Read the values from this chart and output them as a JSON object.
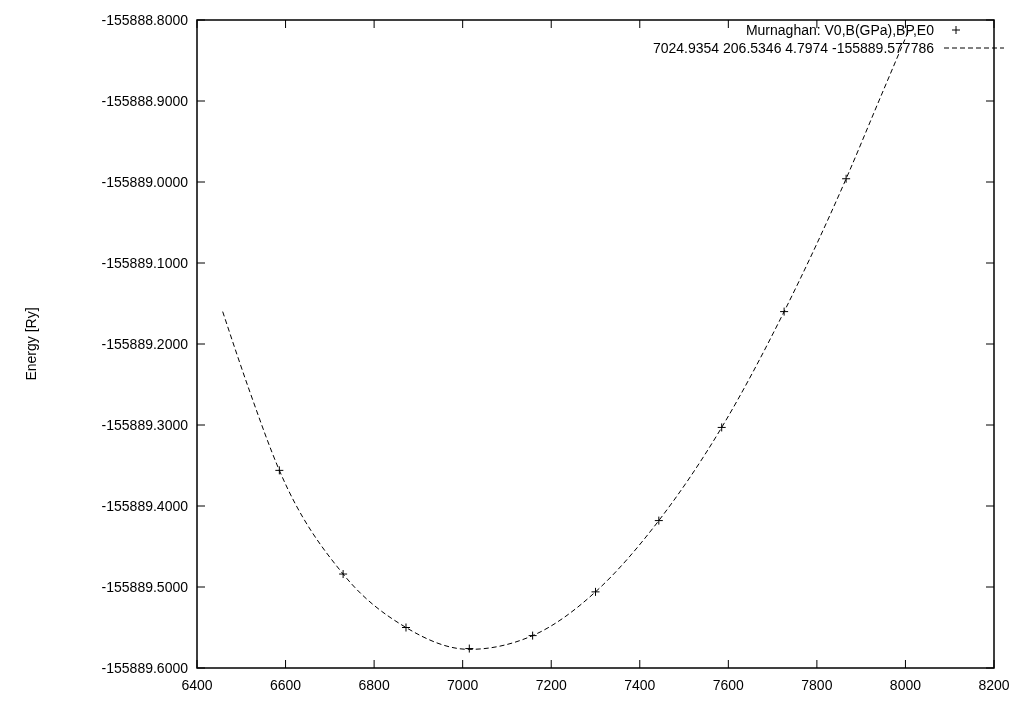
{
  "chart_data": {
    "type": "scatter",
    "ylabel": "Energy [Ry]",
    "series": [
      {
        "name": "Murnaghan: V0,B(GPa),BP,E0",
        "color": "#000000",
        "marker": "cross",
        "x": [
          6586,
          6730,
          6872,
          7015,
          7158,
          7300,
          7443,
          7585,
          7726,
          7866
        ],
        "values": [
          -155889.356,
          -155889.484,
          -155889.55,
          -155889.576,
          -155889.56,
          -155889.506,
          -155889.418,
          -155889.303,
          -155889.16,
          -155888.996
        ]
      },
      {
        "type": "line",
        "name": "7024.9354 206.5346 4.7974 -155889.577786",
        "color": "#000000",
        "marker": "none",
        "line_style": "dashed",
        "x": [
          6458,
          6520,
          6586,
          6730,
          6872,
          7015,
          7158,
          7300,
          7443,
          7585,
          7726,
          7866,
          7940,
          8008
        ],
        "values": [
          -155889.16,
          -155889.26,
          -155889.356,
          -155889.484,
          -155889.55,
          -155889.577,
          -155889.56,
          -155889.506,
          -155889.418,
          -155889.303,
          -155889.16,
          -155888.996,
          -155888.9,
          -155888.812
        ]
      }
    ],
    "xlim": [
      6400,
      8200
    ],
    "xticks": [
      6400,
      6600,
      6800,
      7000,
      7200,
      7400,
      7600,
      7800,
      8000,
      8200
    ],
    "ylim": [
      -155889.6,
      -155888.8
    ],
    "yticks": [
      {
        "value": -155889.6,
        "label": "-155889.6000"
      },
      {
        "value": -155889.5,
        "label": "-155889.5000"
      },
      {
        "value": -155889.4,
        "label": "-155889.4000"
      },
      {
        "value": -155889.3,
        "label": "-155889.3000"
      },
      {
        "value": -155889.2,
        "label": "-155889.2000"
      },
      {
        "value": -155889.1,
        "label": "-155889.1000"
      },
      {
        "value": -155889.0,
        "label": "-155889.0000"
      },
      {
        "value": -155888.9,
        "label": "-155888.9000"
      },
      {
        "value": -155888.8,
        "label": "-155888.8000"
      }
    ],
    "grid": false,
    "legend": "top right"
  }
}
